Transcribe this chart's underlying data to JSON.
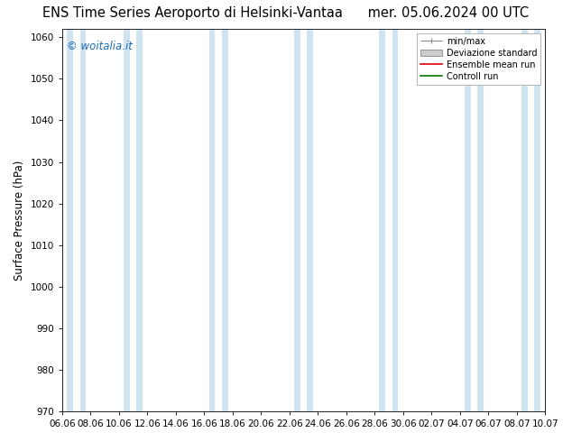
{
  "title_left": "ENS Time Series Aeroporto di Helsinki-Vantaa",
  "title_right": "mer. 05.06.2024 00 UTC",
  "ylabel": "Surface Pressure (hPa)",
  "ylim": [
    970,
    1062
  ],
  "yticks": [
    970,
    980,
    990,
    1000,
    1010,
    1020,
    1030,
    1040,
    1050,
    1060
  ],
  "xtick_labels": [
    "06.06",
    "08.06",
    "10.06",
    "12.06",
    "14.06",
    "16.06",
    "18.06",
    "20.06",
    "22.06",
    "24.06",
    "26.06",
    "28.06",
    "30.06",
    "02.07",
    "04.07",
    "06.07",
    "08.07",
    "10.07"
  ],
  "watermark": "© woitalia.it",
  "watermark_color": "#1a6bb5",
  "bg_color": "#ffffff",
  "plot_bg_color": "#ffffff",
  "band_color": "#cfe3f0",
  "legend_items": [
    "min/max",
    "Deviazione standard",
    "Ensemble mean run",
    "Controll run"
  ],
  "legend_line_color": "#888888",
  "legend_fill_color": "#cccccc",
  "legend_red_color": "#dd0000",
  "legend_green_color": "#007700",
  "title_fontsize": 10.5,
  "axis_fontsize": 8.5,
  "tick_fontsize": 7.5,
  "band_indices": [
    0,
    1,
    3,
    4,
    7,
    8,
    11,
    12,
    15,
    16
  ]
}
